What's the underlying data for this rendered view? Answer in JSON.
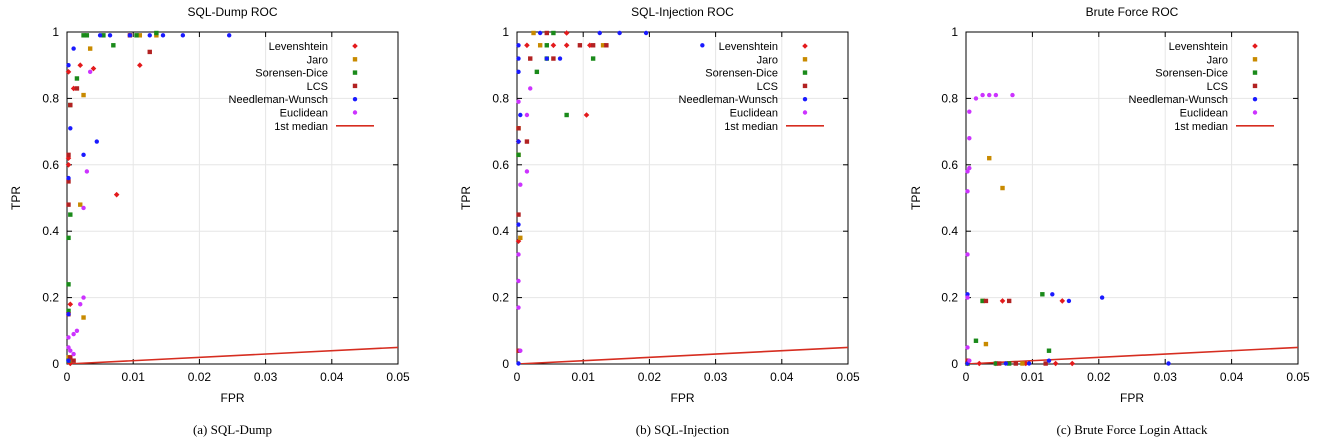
{
  "chart_data": [
    {
      "type": "scatter",
      "title": "SQL-Dump ROC",
      "xlabel": "FPR",
      "ylabel": "TPR",
      "caption": "(a)  SQL-Dump",
      "xlim": [
        0,
        0.05
      ],
      "ylim": [
        0,
        1
      ],
      "xticks": [
        "0",
        "0.01",
        "0.02",
        "0.03",
        "0.04",
        "0.05"
      ],
      "yticks": [
        "0",
        "0.2",
        "0.4",
        "0.6",
        "0.8",
        "1"
      ],
      "grid": true,
      "legend_position": "top-right",
      "series": [
        {
          "name": "Levenshtein",
          "color": "#e31a1c",
          "marker": "diamond",
          "points": [
            [
              0.0,
              0.88
            ],
            [
              0.001,
              0.83
            ],
            [
              0.002,
              0.9
            ],
            [
              0.004,
              0.89
            ],
            [
              0.0075,
              0.51
            ],
            [
              0.011,
              0.9
            ],
            [
              0.0005,
              0.18
            ],
            [
              0.0005,
              0.0
            ],
            [
              0.0,
              0.62
            ],
            [
              0.0,
              0.6
            ],
            [
              0.0005,
              0.01
            ]
          ]
        },
        {
          "name": "Jaro",
          "color": "#c88a00",
          "marker": "square",
          "points": [
            [
              0.0025,
              0.81
            ],
            [
              0.0035,
              0.95
            ],
            [
              0.002,
              0.48
            ],
            [
              0.0025,
              0.14
            ],
            [
              0.0005,
              0.01
            ],
            [
              0.0,
              0.02
            ],
            [
              0.011,
              0.99
            ],
            [
              0.0135,
              0.99
            ]
          ]
        },
        {
          "name": "Sorensen-Dice",
          "color": "#1a8a1a",
          "marker": "square",
          "points": [
            [
              0.0025,
              0.99
            ],
            [
              0.003,
              0.99
            ],
            [
              0.0055,
              0.99
            ],
            [
              0.007,
              0.96
            ],
            [
              0.0105,
              0.99
            ],
            [
              0.0015,
              0.86
            ],
            [
              0.0005,
              0.78
            ],
            [
              0.0005,
              0.45
            ],
            [
              0.0,
              0.38
            ],
            [
              0.0,
              0.24
            ],
            [
              0.0,
              0.16
            ],
            [
              0.0,
              0.01
            ],
            [
              0.0135,
              1.0
            ]
          ]
        },
        {
          "name": "LCS",
          "color": "#b22222",
          "marker": "square",
          "points": [
            [
              0.0015,
              0.83
            ],
            [
              0.0005,
              0.78
            ],
            [
              0.0,
              0.63
            ],
            [
              0.0,
              0.55
            ],
            [
              0.0,
              0.48
            ],
            [
              0.0,
              0.15
            ],
            [
              0.0005,
              0.02
            ],
            [
              0.001,
              0.01
            ],
            [
              0.0095,
              0.99
            ],
            [
              0.0125,
              0.94
            ]
          ]
        },
        {
          "name": "Needleman-Wunsch",
          "color": "#1a1aff",
          "marker": "circle",
          "points": [
            [
              0.0,
              0.9
            ],
            [
              0.001,
              0.95
            ],
            [
              0.0005,
              0.71
            ],
            [
              0.0,
              0.56
            ],
            [
              0.0025,
              0.63
            ],
            [
              0.0045,
              0.67
            ],
            [
              0.0,
              0.15
            ],
            [
              0.0,
              0.01
            ],
            [
              0.0095,
              0.99
            ],
            [
              0.0125,
              0.99
            ],
            [
              0.0145,
              0.99
            ],
            [
              0.0175,
              0.99
            ],
            [
              0.0245,
              0.99
            ],
            [
              0.005,
              0.99
            ],
            [
              0.0065,
              0.99
            ]
          ]
        },
        {
          "name": "Euclidean",
          "color": "#cc33ff",
          "marker": "circle",
          "points": [
            [
              0.003,
              0.58
            ],
            [
              0.0025,
              0.47
            ],
            [
              0.002,
              0.18
            ],
            [
              0.0025,
              0.2
            ],
            [
              0.0015,
              0.1
            ],
            [
              0.001,
              0.09
            ],
            [
              0.0,
              0.08
            ],
            [
              0.0005,
              0.04
            ],
            [
              0.001,
              0.03
            ],
            [
              0.0,
              0.05
            ],
            [
              0.0035,
              0.88
            ]
          ]
        }
      ],
      "median_line": {
        "name": "1st median",
        "color": "#d62d20",
        "x": [
          0,
          0.05
        ],
        "y": [
          0,
          0.05
        ]
      }
    },
    {
      "type": "scatter",
      "title": "SQL-Injection ROC",
      "xlabel": "FPR",
      "ylabel": "TPR",
      "caption": "(b)  SQL-Injection",
      "xlim": [
        0,
        0.05
      ],
      "ylim": [
        0,
        1
      ],
      "xticks": [
        "0",
        "0.01",
        "0.02",
        "0.03",
        "0.04",
        "0.05"
      ],
      "yticks": [
        "0",
        "0.2",
        "0.4",
        "0.6",
        "0.8",
        "1"
      ],
      "grid": true,
      "legend_position": "top-right",
      "series": [
        {
          "name": "Levenshtein",
          "color": "#e31a1c",
          "marker": "diamond",
          "points": [
            [
              0.0055,
              0.96
            ],
            [
              0.0075,
              0.96
            ],
            [
              0.011,
              0.96
            ],
            [
              0.0105,
              0.75
            ],
            [
              0.0,
              0.37
            ],
            [
              0.0,
              0.67
            ],
            [
              0.0015,
              0.96
            ],
            [
              0.0075,
              1.0
            ]
          ]
        },
        {
          "name": "Jaro",
          "color": "#c88a00",
          "marker": "square",
          "points": [
            [
              0.0025,
              1.0
            ],
            [
              0.0035,
              0.96
            ],
            [
              0.0,
              0.71
            ],
            [
              0.0,
              0.63
            ],
            [
              0.0005,
              0.38
            ],
            [
              0.013,
              0.96
            ]
          ]
        },
        {
          "name": "Sorensen-Dice",
          "color": "#1a8a1a",
          "marker": "square",
          "points": [
            [
              0.0045,
              0.96
            ],
            [
              0.003,
              0.88
            ],
            [
              0.0075,
              0.75
            ],
            [
              0.0115,
              0.92
            ],
            [
              0.0,
              0.63
            ],
            [
              0.0055,
              1.0
            ],
            [
              0.0045,
              0.92
            ]
          ]
        },
        {
          "name": "LCS",
          "color": "#b22222",
          "marker": "square",
          "points": [
            [
              0.0095,
              0.96
            ],
            [
              0.0135,
              0.96
            ],
            [
              0.002,
              0.92
            ],
            [
              0.0055,
              0.92
            ],
            [
              0.0015,
              0.67
            ],
            [
              0.0,
              0.71
            ],
            [
              0.0,
              0.45
            ],
            [
              0.0,
              0.04
            ],
            [
              0.0045,
              1.0
            ],
            [
              0.0115,
              0.96
            ]
          ]
        },
        {
          "name": "Needleman-Wunsch",
          "color": "#1a1aff",
          "marker": "circle",
          "points": [
            [
              0.0,
              0.96
            ],
            [
              0.0,
              0.92
            ],
            [
              0.0,
              0.88
            ],
            [
              0.0005,
              0.75
            ],
            [
              0.0,
              0.67
            ],
            [
              0.0,
              0.42
            ],
            [
              0.0,
              0.0
            ],
            [
              0.0125,
              1.0
            ],
            [
              0.0155,
              1.0
            ],
            [
              0.0195,
              1.0
            ],
            [
              0.028,
              0.96
            ],
            [
              0.0045,
              0.92
            ],
            [
              0.0065,
              0.92
            ],
            [
              0.0035,
              1.0
            ]
          ]
        },
        {
          "name": "Euclidean",
          "color": "#cc33ff",
          "marker": "circle",
          "points": [
            [
              0.002,
              0.83
            ],
            [
              0.0015,
              0.58
            ],
            [
              0.0,
              0.79
            ],
            [
              0.0005,
              0.54
            ],
            [
              0.0,
              0.33
            ],
            [
              0.0,
              0.25
            ],
            [
              0.0,
              0.17
            ],
            [
              0.0005,
              0.04
            ],
            [
              0.0015,
              0.75
            ]
          ]
        }
      ],
      "median_line": {
        "name": "1st median",
        "color": "#d62d20",
        "x": [
          0,
          0.05
        ],
        "y": [
          0,
          0.05
        ]
      }
    },
    {
      "type": "scatter",
      "title": "Brute Force ROC",
      "xlabel": "FPR",
      "ylabel": "TPR",
      "caption": "(c)  Brute Force Login Attack",
      "xlim": [
        0,
        0.05
      ],
      "ylim": [
        0,
        1
      ],
      "xticks": [
        "0",
        "0.01",
        "0.02",
        "0.03",
        "0.04",
        "0.05"
      ],
      "yticks": [
        "0",
        "0.2",
        "0.4",
        "0.6",
        "0.8",
        "1"
      ],
      "grid": true,
      "legend_position": "top-right",
      "series": [
        {
          "name": "Levenshtein",
          "color": "#e31a1c",
          "marker": "diamond",
          "points": [
            [
              0.0055,
              0.19
            ],
            [
              0.0145,
              0.19
            ],
            [
              0.0,
              0.0
            ],
            [
              0.0045,
              0.0
            ],
            [
              0.009,
              0.0
            ],
            [
              0.0135,
              0.0
            ],
            [
              0.016,
              0.0
            ],
            [
              0.002,
              0.0
            ]
          ]
        },
        {
          "name": "Jaro",
          "color": "#c88a00",
          "marker": "square",
          "points": [
            [
              0.0035,
              0.62
            ],
            [
              0.0055,
              0.53
            ],
            [
              0.0025,
              0.19
            ],
            [
              0.003,
              0.06
            ],
            [
              0.0,
              0.0
            ],
            [
              0.0085,
              0.0
            ]
          ]
        },
        {
          "name": "Sorensen-Dice",
          "color": "#1a8a1a",
          "marker": "square",
          "points": [
            [
              0.0115,
              0.21
            ],
            [
              0.0025,
              0.19
            ],
            [
              0.0015,
              0.07
            ],
            [
              0.0125,
              0.04
            ],
            [
              0.0,
              0.0
            ],
            [
              0.0045,
              0.0
            ],
            [
              0.0065,
              0.0
            ]
          ]
        },
        {
          "name": "LCS",
          "color": "#b22222",
          "marker": "square",
          "points": [
            [
              0.0065,
              0.19
            ],
            [
              0.003,
              0.19
            ],
            [
              0.0,
              0.01
            ],
            [
              0.005,
              0.0
            ],
            [
              0.0075,
              0.0
            ],
            [
              0.012,
              0.0
            ]
          ]
        },
        {
          "name": "Needleman-Wunsch",
          "color": "#1a1aff",
          "marker": "circle",
          "points": [
            [
              0.0,
              0.21
            ],
            [
              0.013,
              0.21
            ],
            [
              0.0155,
              0.19
            ],
            [
              0.0205,
              0.2
            ],
            [
              0.0305,
              0.0
            ],
            [
              0.0125,
              0.01
            ],
            [
              0.0,
              0.0
            ],
            [
              0.006,
              0.0
            ],
            [
              0.0095,
              0.0
            ]
          ]
        },
        {
          "name": "Euclidean",
          "color": "#cc33ff",
          "marker": "circle",
          "points": [
            [
              0.0005,
              0.68
            ],
            [
              0.0,
              0.58
            ],
            [
              0.0005,
              0.59
            ],
            [
              0.0,
              0.52
            ],
            [
              0.0005,
              0.76
            ],
            [
              0.0015,
              0.8
            ],
            [
              0.0025,
              0.81
            ],
            [
              0.0035,
              0.81
            ],
            [
              0.0045,
              0.81
            ],
            [
              0.007,
              0.81
            ],
            [
              0.0,
              0.33
            ],
            [
              0.0,
              0.2
            ],
            [
              0.0,
              0.05
            ],
            [
              0.0005,
              0.01
            ]
          ]
        }
      ],
      "median_line": {
        "name": "1st median",
        "color": "#d62d20",
        "x": [
          0,
          0.05
        ],
        "y": [
          0,
          0.05
        ]
      }
    }
  ]
}
